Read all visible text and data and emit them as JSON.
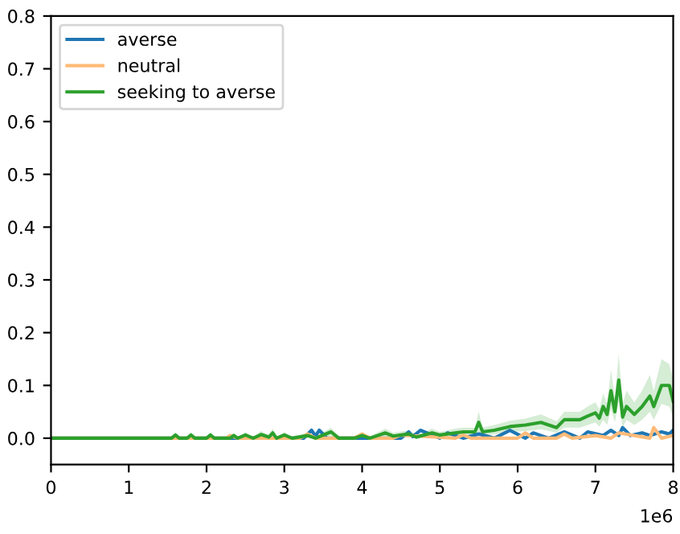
{
  "chart_data": {
    "type": "line",
    "xlim": [
      0,
      8
    ],
    "ylim": [
      -0.05,
      0.8
    ],
    "xticks": [
      0,
      1,
      2,
      3,
      4,
      5,
      6,
      7,
      8
    ],
    "yticks": [
      {
        "value": 0,
        "label": "0.0"
      },
      {
        "value": 0.1,
        "label": "0.1"
      },
      {
        "value": 0.2,
        "label": "0.2"
      },
      {
        "value": 0.3,
        "label": "0.3"
      },
      {
        "value": 0.4,
        "label": "0.4"
      },
      {
        "value": 0.5,
        "label": "0.5"
      },
      {
        "value": 0.6,
        "label": "0.6"
      },
      {
        "value": 0.7,
        "label": "0.7"
      },
      {
        "value": 0.8,
        "label": "0.8"
      }
    ],
    "annotations": [
      "1e6"
    ],
    "legend": "top left",
    "series": [
      {
        "name": "averse",
        "color": "#1f77b4",
        "x": [
          0,
          3.25,
          3.35,
          3.4,
          3.45,
          3.55,
          3.7,
          4.5,
          4.6,
          4.65,
          4.75,
          5.0,
          5.1,
          5.3,
          5.5,
          5.7,
          5.9,
          6.1,
          6.2,
          6.4,
          6.6,
          6.8,
          6.9,
          7.1,
          7.2,
          7.3,
          7.35,
          7.45,
          7.6,
          7.7,
          7.85,
          7.95,
          8.0
        ],
        "values": [
          0,
          0,
          0.015,
          0.004,
          0.015,
          0,
          0,
          0,
          0.012,
          0.003,
          0.015,
          0,
          0.01,
          0,
          0.008,
          0,
          0.015,
          0,
          0.01,
          0,
          0.012,
          0,
          0.012,
          0.005,
          0.015,
          0.005,
          0.02,
          0.005,
          0.01,
          0.005,
          0.012,
          0.008,
          0.015
        ]
      },
      {
        "name": "neutral",
        "color": "#ffbb78",
        "x": [
          0,
          2.25,
          2.3,
          2.4,
          3.2,
          3.3,
          3.4,
          3.9,
          4.0,
          4.1,
          4.4,
          4.5,
          5.2,
          5.3,
          5.4,
          6.0,
          6.1,
          6.2,
          6.5,
          6.6,
          6.7,
          7.0,
          7.2,
          7.3,
          7.7,
          7.75,
          7.85,
          8.0
        ],
        "values": [
          0,
          0,
          0.005,
          0,
          0,
          0.008,
          0,
          0,
          0.008,
          0,
          0,
          0.006,
          0,
          0.006,
          0,
          0,
          0.01,
          0,
          0,
          0.008,
          0,
          0.005,
          0,
          0.01,
          0,
          0.02,
          0,
          0.005
        ]
      },
      {
        "name": "seeking to averse",
        "color": "#2ca02c",
        "x": [
          0,
          1.55,
          1.6,
          1.65,
          1.75,
          1.8,
          1.85,
          2.0,
          2.05,
          2.1,
          2.3,
          2.35,
          2.4,
          2.5,
          2.6,
          2.7,
          2.8,
          2.85,
          2.9,
          3.0,
          3.1,
          3.3,
          3.4,
          3.6,
          3.7,
          3.9,
          4.0,
          4.1,
          4.3,
          4.4,
          4.6,
          4.7,
          4.9,
          5.0,
          5.2,
          5.3,
          5.45,
          5.5,
          5.55,
          5.7,
          5.9,
          6.1,
          6.3,
          6.5,
          6.6,
          6.8,
          6.9,
          7.0,
          7.05,
          7.1,
          7.15,
          7.2,
          7.25,
          7.3,
          7.35,
          7.4,
          7.5,
          7.6,
          7.7,
          7.75,
          7.85,
          7.95,
          8.0
        ],
        "values": [
          0,
          0,
          0.006,
          0,
          0,
          0.006,
          0,
          0,
          0.006,
          0,
          0,
          0.005,
          0,
          0.006,
          0,
          0.007,
          0.002,
          0.01,
          0,
          0.006,
          0,
          0.005,
          0,
          0.012,
          0,
          0,
          0.005,
          0,
          0.01,
          0.004,
          0.008,
          0.002,
          0.01,
          0.006,
          0.01,
          0.012,
          0.012,
          0.03,
          0.012,
          0.015,
          0.022,
          0.025,
          0.03,
          0.02,
          0.035,
          0.035,
          0.042,
          0.048,
          0.038,
          0.06,
          0.045,
          0.09,
          0.05,
          0.11,
          0.04,
          0.06,
          0.045,
          0.06,
          0.08,
          0.06,
          0.1,
          0.1,
          0.07
        ],
        "lower": [
          0,
          0,
          0,
          0,
          0,
          0,
          0,
          0,
          0,
          0,
          0,
          0,
          0,
          0,
          0,
          0,
          0,
          0.004,
          0,
          0,
          0,
          0,
          0,
          0.005,
          0,
          0,
          0,
          0,
          0.004,
          0,
          0.002,
          0,
          0.004,
          0.002,
          0.004,
          0.005,
          0.005,
          0.012,
          0.005,
          0.007,
          0.012,
          0.013,
          0.017,
          0.01,
          0.02,
          0.02,
          0.025,
          0.03,
          0.022,
          0.035,
          0.025,
          0.055,
          0.03,
          0.07,
          0.02,
          0.035,
          0.025,
          0.035,
          0.05,
          0.035,
          0.065,
          0.06,
          0.04
        ],
        "upper": [
          0,
          0,
          0.012,
          0,
          0,
          0.012,
          0,
          0,
          0.012,
          0,
          0,
          0.01,
          0,
          0.012,
          0,
          0.014,
          0.006,
          0.018,
          0.003,
          0.012,
          0.003,
          0.01,
          0.003,
          0.02,
          0.004,
          0.004,
          0.01,
          0.004,
          0.018,
          0.01,
          0.015,
          0.006,
          0.018,
          0.012,
          0.018,
          0.02,
          0.02,
          0.05,
          0.02,
          0.025,
          0.033,
          0.037,
          0.045,
          0.032,
          0.05,
          0.05,
          0.06,
          0.068,
          0.055,
          0.085,
          0.065,
          0.13,
          0.075,
          0.16,
          0.065,
          0.09,
          0.068,
          0.09,
          0.12,
          0.09,
          0.15,
          0.14,
          0.11
        ]
      }
    ]
  }
}
